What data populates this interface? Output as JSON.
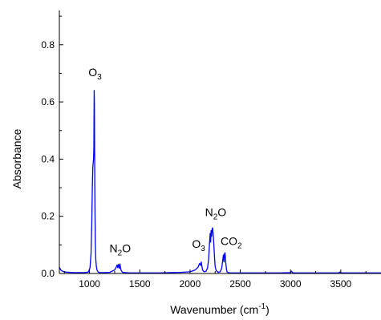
{
  "chart_data": {
    "type": "line",
    "title": "",
    "xlabel": "Wavenumber (cm",
    "xlabel_sup": "-1",
    "xlabel_tail": ")",
    "ylabel": "Absorbance",
    "xlim": [
      700,
      3900
    ],
    "ylim": [
      0,
      0.92
    ],
    "xticks": [
      1000,
      1500,
      2000,
      2500,
      3000,
      3500
    ],
    "xtick_labels": [
      "1000",
      "1500",
      "2000",
      "2500",
      "3000",
      "3500"
    ],
    "yticks": [
      0,
      0.2,
      0.4,
      0.6,
      0.8
    ],
    "ytick_labels": [
      "0.0",
      "0.2",
      "0.4",
      "0.6",
      "0.8"
    ],
    "grid": false,
    "line_color": "#0000ff",
    "series": [
      {
        "x": [
          700,
          715,
          730,
          760,
          800,
          850,
          900,
          950,
          990,
          1005,
          1015,
          1022,
          1028,
          1033,
          1036,
          1040,
          1043,
          1046,
          1049,
          1051,
          1053,
          1055,
          1058,
          1062,
          1068,
          1075,
          1085,
          1100,
          1150,
          1200,
          1250,
          1265,
          1275,
          1282,
          1288,
          1293,
          1298,
          1303,
          1308,
          1315,
          1330,
          1400,
          1500,
          1600,
          1700,
          1800,
          1900,
          2000,
          2050,
          2080,
          2095,
          2105,
          2112,
          2118,
          2125,
          2140,
          2160,
          2175,
          2185,
          2193,
          2200,
          2205,
          2210,
          2215,
          2220,
          2225,
          2230,
          2235,
          2240,
          2245,
          2250,
          2260,
          2280,
          2300,
          2315,
          2325,
          2332,
          2338,
          2344,
          2349,
          2353,
          2358,
          2362,
          2368,
          2380,
          2400,
          2500,
          2700,
          2900,
          3000,
          3010,
          3020,
          3030,
          3100,
          3300,
          3480,
          3490,
          3500,
          3510,
          3600,
          3750,
          3900
        ],
        "y": [
          0.022,
          0.012,
          0.008,
          0.005,
          0.004,
          0.003,
          0.003,
          0.003,
          0.005,
          0.02,
          0.07,
          0.17,
          0.3,
          0.37,
          0.385,
          0.4,
          0.44,
          0.64,
          0.6,
          0.42,
          0.3,
          0.2,
          0.1,
          0.05,
          0.025,
          0.012,
          0.006,
          0.003,
          0.003,
          0.004,
          0.012,
          0.022,
          0.03,
          0.02,
          0.032,
          0.028,
          0.018,
          0.033,
          0.02,
          0.01,
          0.004,
          0.002,
          0.002,
          0.002,
          0.002,
          0.003,
          0.004,
          0.006,
          0.012,
          0.022,
          0.035,
          0.028,
          0.04,
          0.026,
          0.012,
          0.006,
          0.008,
          0.02,
          0.05,
          0.1,
          0.14,
          0.11,
          0.15,
          0.13,
          0.155,
          0.16,
          0.14,
          0.11,
          0.08,
          0.05,
          0.025,
          0.01,
          0.004,
          0.006,
          0.018,
          0.045,
          0.065,
          0.04,
          0.07,
          0.072,
          0.05,
          0.03,
          0.015,
          0.006,
          0.003,
          0.002,
          0.002,
          0.002,
          0.002,
          0.003,
          0.008,
          0.003,
          0.002,
          0.002,
          0.002,
          0.002,
          0.005,
          0.002,
          0.002,
          0.002,
          0.002,
          0.002
        ]
      }
    ],
    "annotations": [
      {
        "base": "O",
        "sub": "3",
        "x": 1055,
        "y": 0.69
      },
      {
        "base": "N",
        "sub": "2",
        "tail": "O",
        "x": 1305,
        "y": 0.075
      },
      {
        "base": "O",
        "sub": "3",
        "x": 2085,
        "y": 0.09
      },
      {
        "base": "N",
        "sub": "2",
        "tail": "O",
        "x": 2255,
        "y": 0.2
      },
      {
        "base": "CO",
        "sub": "2",
        "x": 2410,
        "y": 0.1
      }
    ]
  }
}
